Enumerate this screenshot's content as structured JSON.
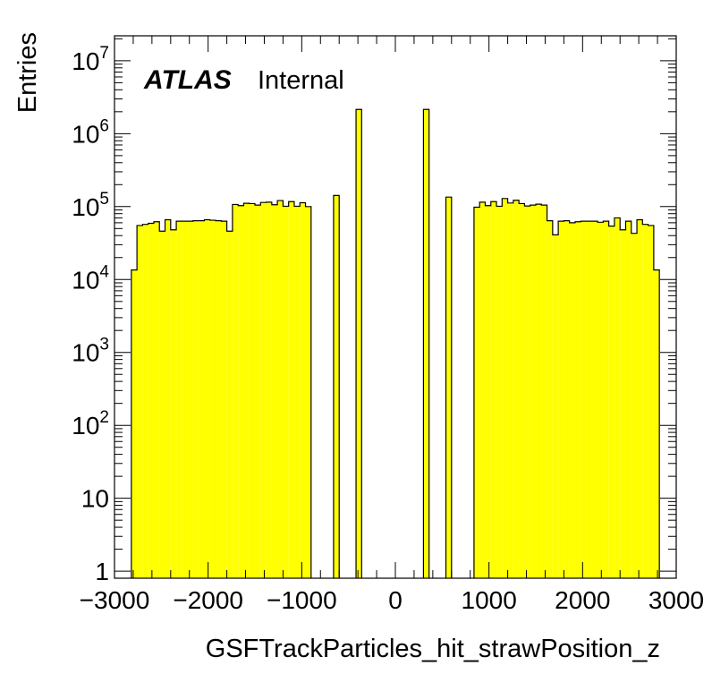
{
  "chart_data": {
    "type": "bar",
    "xlabel": "GSFTrackParticles_hit_strawPosition_z",
    "ylabel": "Entries",
    "xlim": [
      -3000,
      3000
    ],
    "ylim": [
      0.8,
      22000000
    ],
    "y_scale": "log",
    "x_ticks": [
      "−3000",
      "−2000",
      "−1000",
      "0",
      "1000",
      "2000",
      "3000"
    ],
    "y_ticks": [
      {
        "value": 1,
        "base": "1",
        "exp": ""
      },
      {
        "value": 10,
        "base": "10",
        "exp": ""
      },
      {
        "value": 100,
        "base": "10",
        "exp": "2"
      },
      {
        "value": 1000,
        "base": "10",
        "exp": "3"
      },
      {
        "value": 10000,
        "base": "10",
        "exp": "4"
      },
      {
        "value": 100000,
        "base": "10",
        "exp": "5"
      },
      {
        "value": 1000000,
        "base": "10",
        "exp": "6"
      },
      {
        "value": 10000000,
        "base": "10",
        "exp": "7"
      }
    ],
    "label_atlas": "ATLAS",
    "label_status": "Internal",
    "fill_color": "#ffff00",
    "line_color": "#000000",
    "bin_width": 60,
    "bins": [
      [
        -2820,
        13500
      ],
      [
        -2760,
        55000
      ],
      [
        -2700,
        57000
      ],
      [
        -2640,
        59000
      ],
      [
        -2580,
        62000
      ],
      [
        -2520,
        46000
      ],
      [
        -2460,
        66000
      ],
      [
        -2400,
        48000
      ],
      [
        -2340,
        63000
      ],
      [
        -2280,
        63000
      ],
      [
        -2220,
        63000
      ],
      [
        -2160,
        64000
      ],
      [
        -2100,
        64000
      ],
      [
        -2040,
        66000
      ],
      [
        -1980,
        65000
      ],
      [
        -1920,
        64000
      ],
      [
        -1860,
        63000
      ],
      [
        -1800,
        46000
      ],
      [
        -1740,
        107000
      ],
      [
        -1680,
        103000
      ],
      [
        -1620,
        111000
      ],
      [
        -1560,
        110000
      ],
      [
        -1500,
        105000
      ],
      [
        -1440,
        114000
      ],
      [
        -1380,
        115000
      ],
      [
        -1320,
        106000
      ],
      [
        -1260,
        121000
      ],
      [
        -1200,
        101000
      ],
      [
        -1140,
        117000
      ],
      [
        -1080,
        101000
      ],
      [
        -1020,
        113000
      ],
      [
        -960,
        100000
      ],
      [
        -660,
        142000
      ],
      [
        -420,
        2150000
      ],
      [
        300,
        2150000
      ],
      [
        540,
        135000
      ],
      [
        840,
        98000
      ],
      [
        900,
        115000
      ],
      [
        960,
        103000
      ],
      [
        1020,
        117000
      ],
      [
        1080,
        101000
      ],
      [
        1140,
        129000
      ],
      [
        1200,
        112000
      ],
      [
        1260,
        122000
      ],
      [
        1320,
        110000
      ],
      [
        1380,
        102000
      ],
      [
        1440,
        105000
      ],
      [
        1500,
        108000
      ],
      [
        1560,
        105000
      ],
      [
        1620,
        64000
      ],
      [
        1680,
        41000
      ],
      [
        1740,
        63000
      ],
      [
        1800,
        64000
      ],
      [
        1860,
        60000
      ],
      [
        1920,
        62000
      ],
      [
        1980,
        63000
      ],
      [
        2040,
        63000
      ],
      [
        2100,
        63000
      ],
      [
        2160,
        61000
      ],
      [
        2220,
        63000
      ],
      [
        2280,
        54000
      ],
      [
        2340,
        70000
      ],
      [
        2400,
        48000
      ],
      [
        2460,
        63000
      ],
      [
        2520,
        43000
      ],
      [
        2580,
        66000
      ],
      [
        2640,
        57000
      ],
      [
        2700,
        55000
      ],
      [
        2760,
        13500
      ]
    ]
  }
}
